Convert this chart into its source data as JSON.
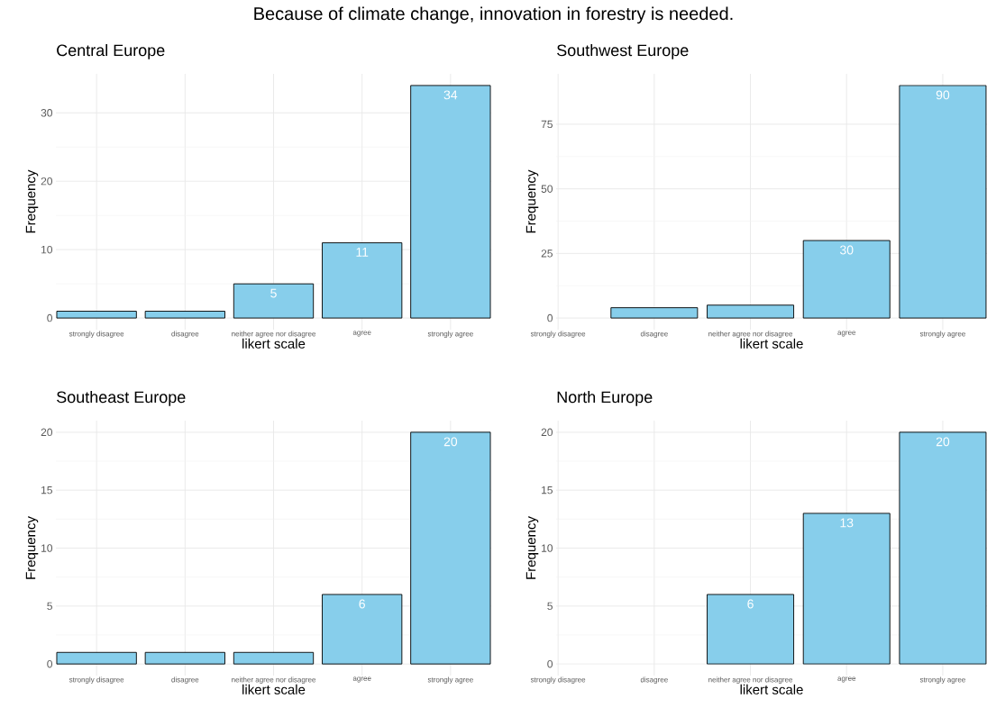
{
  "chart_data": [
    {
      "type": "bar",
      "title": "Central Europe",
      "annotations": [
        "Because of climate change, innovation in forestry is needed."
      ],
      "xlabel": "likert scale",
      "ylabel": "Frequency",
      "categories": [
        "strongly disagree",
        "disagree",
        "neither agree nor disagree",
        "agree",
        "strongly agree"
      ],
      "values": [
        1,
        1,
        5,
        11,
        34
      ],
      "value_labels": [
        null,
        null,
        "5",
        "11",
        "34"
      ],
      "color": "#87ceeb",
      "ylim": [
        -1.7,
        35.7
      ],
      "yticks": [
        0,
        10,
        20,
        30
      ],
      "grid": true
    },
    {
      "type": "bar",
      "title": "Southwest Europe",
      "xlabel": "likert scale",
      "ylabel": "Frequency",
      "categories": [
        "strongly disagree",
        "disagree",
        "neither agree nor disagree",
        "agree",
        "strongly agree"
      ],
      "values": [
        null,
        4,
        5,
        30,
        90
      ],
      "value_labels": [
        null,
        null,
        null,
        "30",
        "90"
      ],
      "color": "#87ceeb",
      "ylim": [
        -4.5,
        94.5
      ],
      "yticks": [
        0,
        25,
        50,
        75
      ],
      "grid": true
    },
    {
      "type": "bar",
      "title": "Southeast Europe",
      "xlabel": "likert scale",
      "ylabel": "Frequency",
      "categories": [
        "strongly disagree",
        "disagree",
        "neither agree nor disagree",
        "agree",
        "strongly agree"
      ],
      "values": [
        1,
        1,
        1,
        6,
        20
      ],
      "value_labels": [
        null,
        null,
        null,
        "6",
        "20"
      ],
      "color": "#87ceeb",
      "ylim": [
        -1,
        21
      ],
      "yticks": [
        0,
        5,
        10,
        15,
        20
      ],
      "grid": true
    },
    {
      "type": "bar",
      "title": "North Europe",
      "xlabel": "likert scale",
      "ylabel": "Frequency",
      "categories": [
        "strongly disagree",
        "disagree",
        "neither agree nor disagree",
        "agree",
        "strongly agree"
      ],
      "values": [
        null,
        null,
        6,
        13,
        20
      ],
      "color": "#87ceeb",
      "ylim": [
        -1,
        21
      ],
      "yticks": [
        0,
        5,
        10,
        15,
        20
      ],
      "grid": true,
      "data_labels": true
    }
  ]
}
